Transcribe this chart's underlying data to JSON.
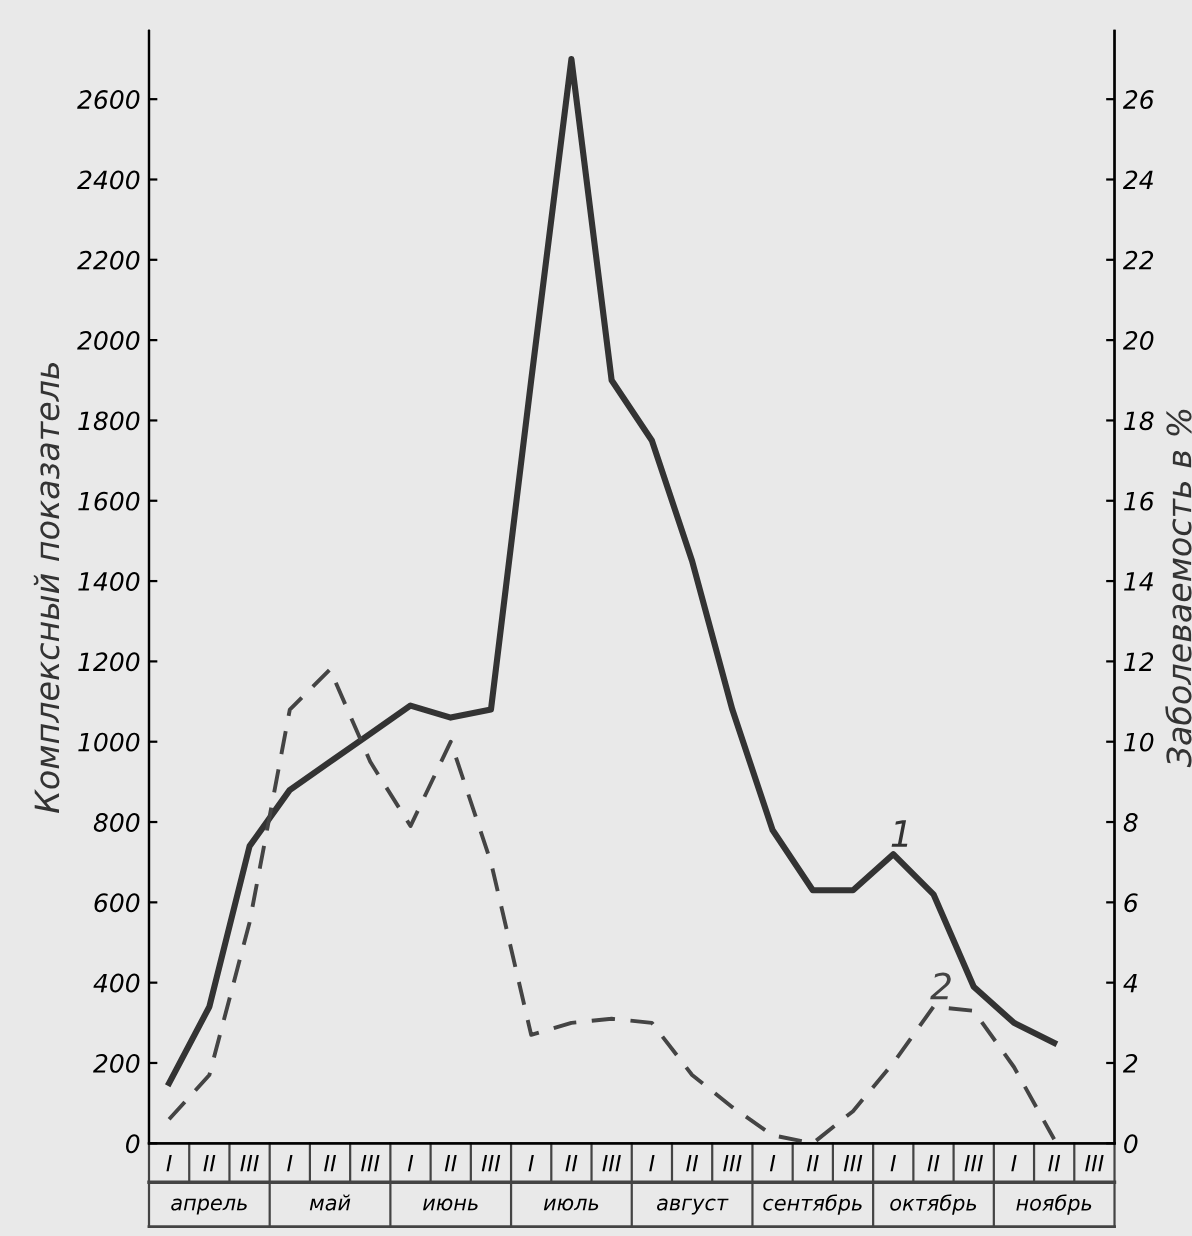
{
  "chart_data": {
    "type": "line",
    "ylabel": "Комплексный показатель",
    "y2label": "Заболеваемость в %",
    "categories": [
      "I",
      "II",
      "III",
      "I",
      "II",
      "III",
      "I",
      "II",
      "III",
      "I",
      "II",
      "III",
      "I",
      "II",
      "III",
      "I",
      "II",
      "III",
      "I",
      "II",
      "III",
      "I",
      "II",
      "III"
    ],
    "ylim": [
      0,
      2770
    ],
    "yticks": [
      0,
      200,
      400,
      600,
      800,
      1000,
      1200,
      1400,
      1600,
      1800,
      2000,
      2200,
      2400,
      2600
    ],
    "y2lim": [
      0,
      27.7
    ],
    "y2ticks": [
      0,
      2,
      4,
      6,
      8,
      10,
      12,
      14,
      16,
      18,
      20,
      22,
      24,
      26
    ],
    "grid": false,
    "series": [
      {
        "name": "1",
        "color": "#333333",
        "line_style": "solid",
        "values": [
          150,
          340,
          740,
          880,
          950,
          1020,
          1090,
          1060,
          1080,
          1900,
          2700,
          1900,
          1750,
          1450,
          1080,
          780,
          630,
          630,
          720,
          620,
          390,
          300,
          250,
          null
        ]
      },
      {
        "name": "2",
        "color": "#444444",
        "line_style": "dashed",
        "axis": "y2",
        "values": [
          0.6,
          1.7,
          5.5,
          10.8,
          11.8,
          9.5,
          7.9,
          10.0,
          7.0,
          2.7,
          3.0,
          3.1,
          3.0,
          1.7,
          0.9,
          0.2,
          0,
          0.8,
          2.0,
          3.4,
          3.3,
          1.9,
          0.1,
          null
        ]
      }
    ],
    "annotations": [
      "апрель",
      "май",
      "июнь",
      "июль",
      "август",
      "сентябрь",
      "октябрь",
      "ноябрь"
    ]
  }
}
